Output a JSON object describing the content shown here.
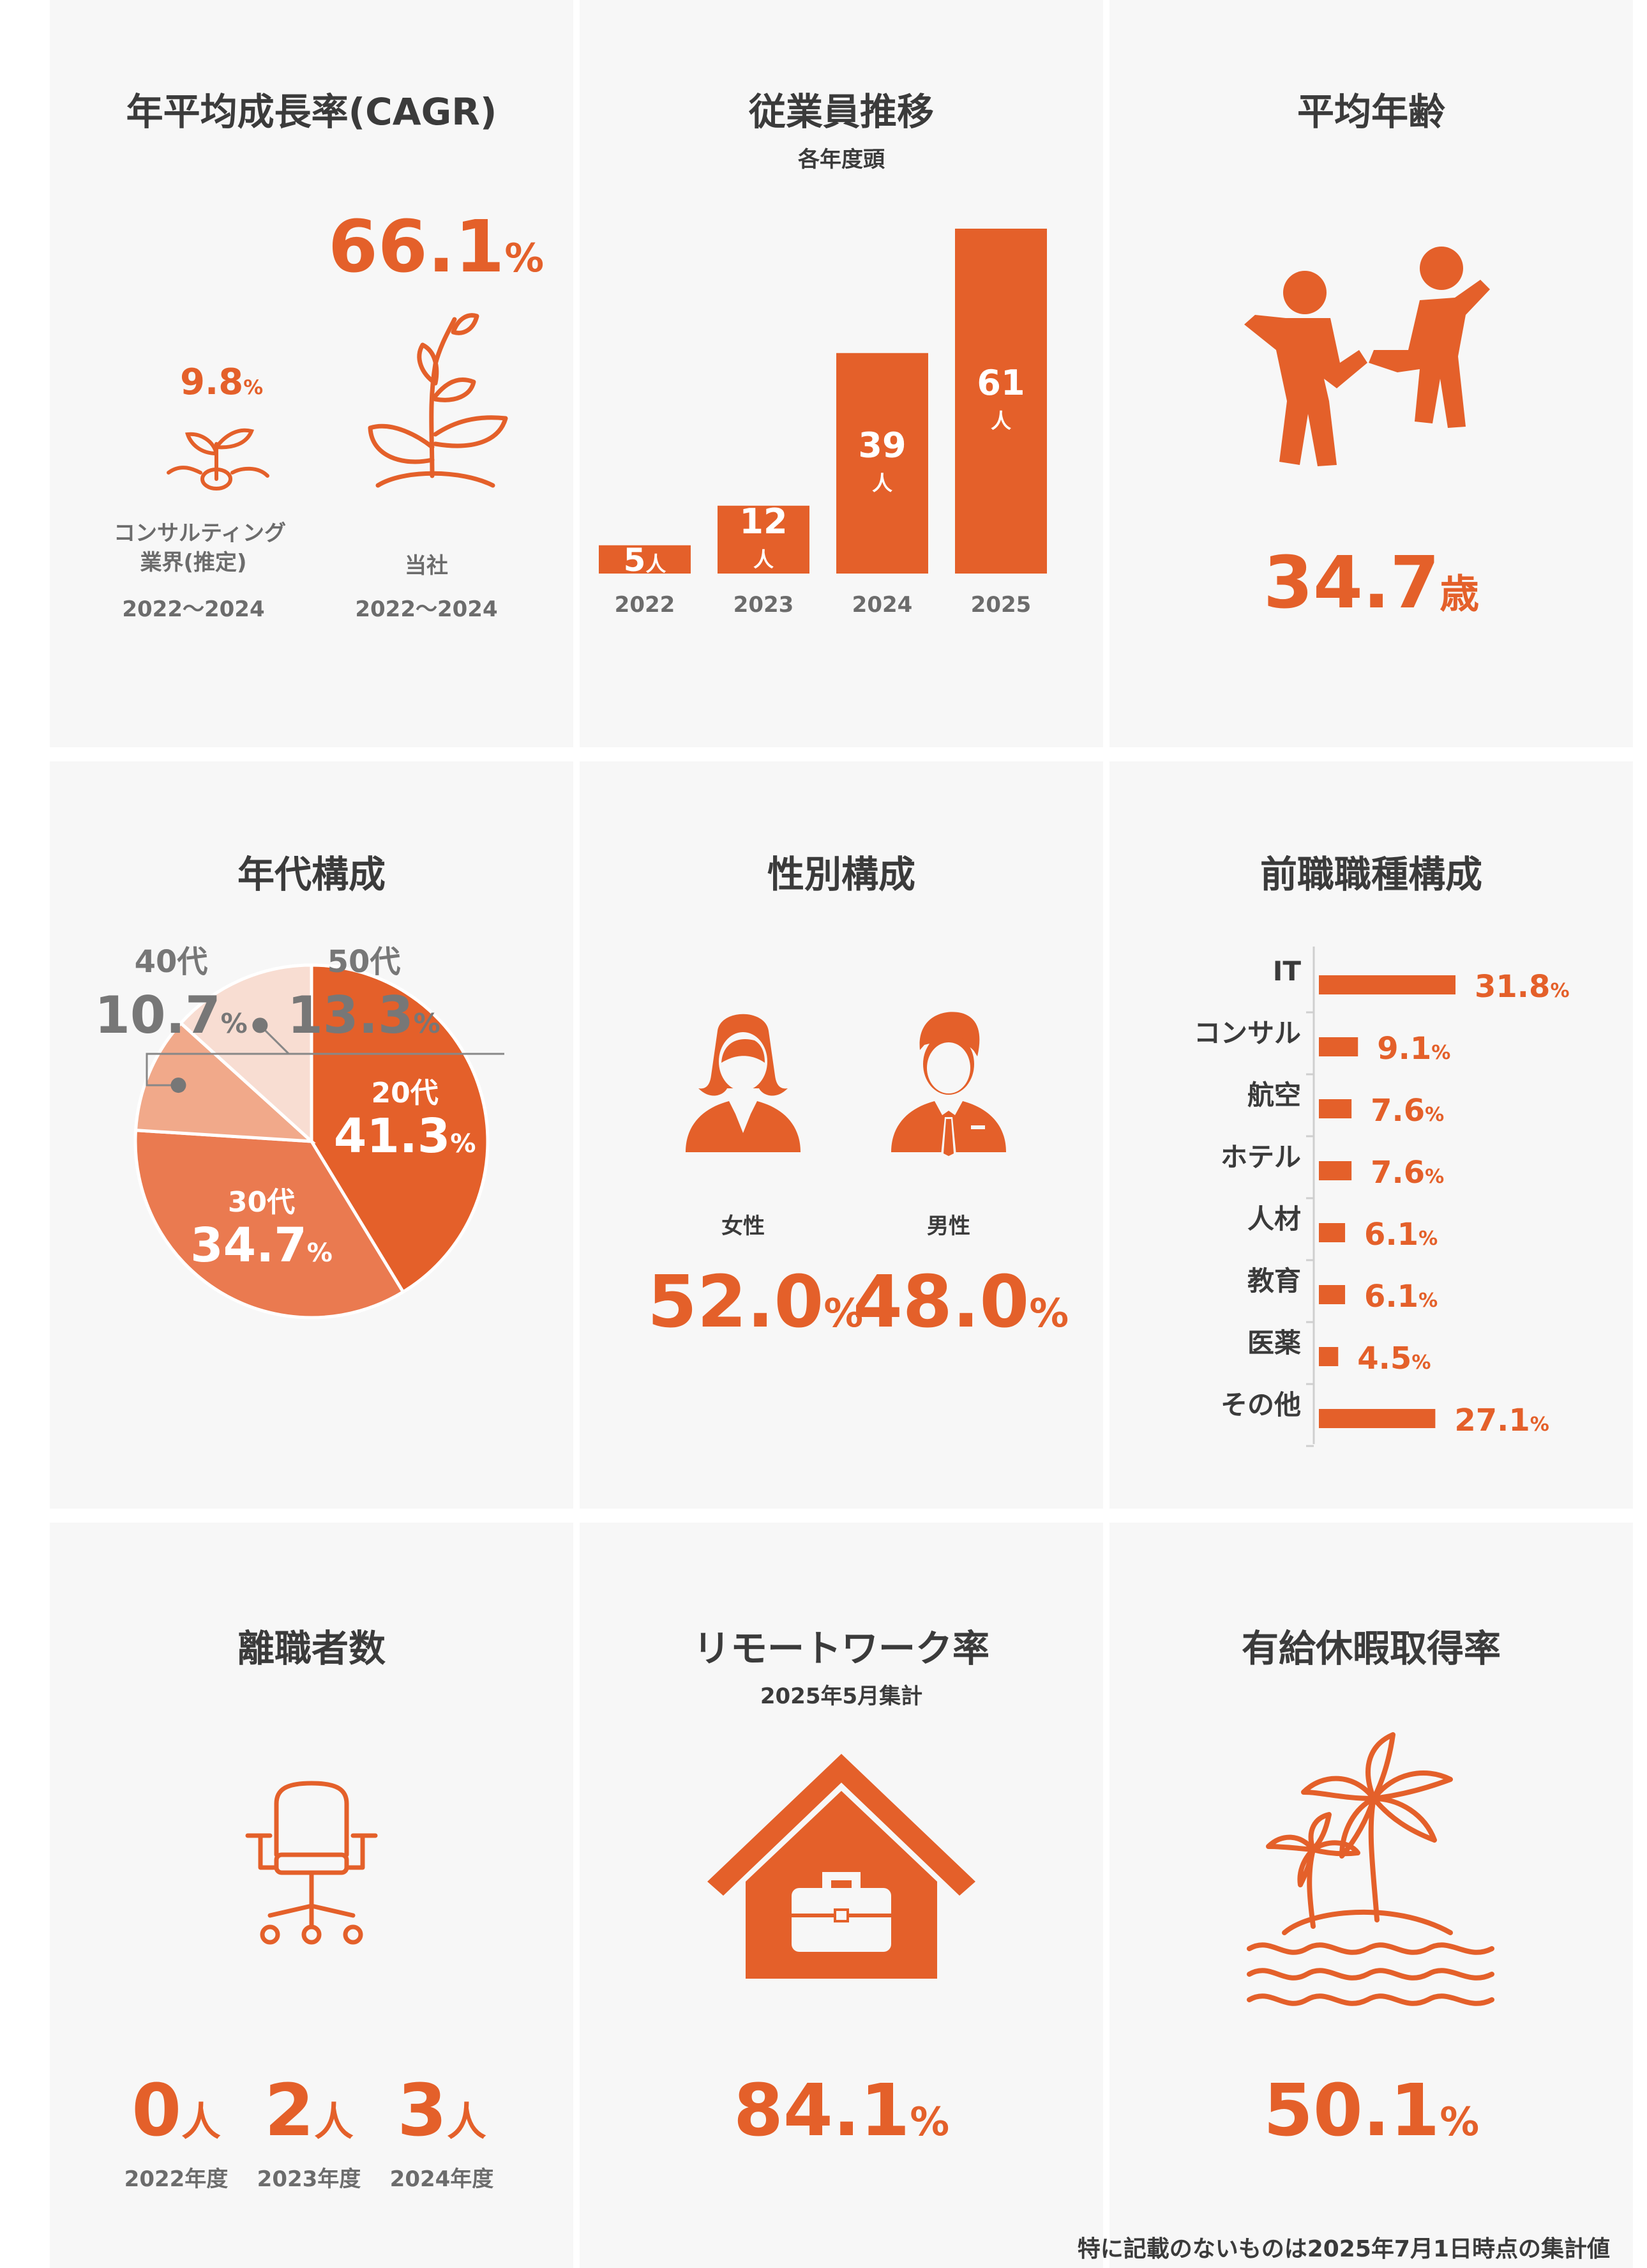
{
  "colors": {
    "accent": "#e4602a",
    "panel": "#f7f7f7",
    "text": "#3b3b3b",
    "pie30": "#ea7a50",
    "pie40": "#f1a98a",
    "pie50": "#f8ddd2"
  },
  "cagr": {
    "title": "年平均成長率(CAGR)",
    "industry": {
      "value": "9.8",
      "unit": "%",
      "label_line1": "コンサルティング",
      "label_line2": "業界(推定)",
      "period": "2022〜2024"
    },
    "company": {
      "value": "66.1",
      "unit": "%",
      "label": "当社",
      "period": "2022〜2024"
    },
    "icons": [
      "sprout-icon",
      "plant-icon"
    ]
  },
  "employees": {
    "title": "従業員推移",
    "subtitle": "各年度頭",
    "chart_data": {
      "type": "bar",
      "categories": [
        "2022",
        "2023",
        "2024",
        "2025"
      ],
      "values": [
        5,
        12,
        39,
        61
      ],
      "unit": "人",
      "ylim": [
        0,
        61
      ]
    }
  },
  "avg_age": {
    "title": "平均年齢",
    "value": "34.7",
    "unit": "歳",
    "icon": "people-dancing-icon"
  },
  "age_comp": {
    "title": "年代構成",
    "chart_data": {
      "type": "pie",
      "categories": [
        "20代",
        "30代",
        "40代",
        "50代"
      ],
      "values": [
        41.3,
        34.7,
        10.7,
        13.3
      ],
      "unit": "%"
    }
  },
  "gender": {
    "title": "性別構成",
    "female": {
      "label": "女性",
      "value": "52.0",
      "unit": "%",
      "icon": "woman-icon"
    },
    "male": {
      "label": "男性",
      "value": "48.0",
      "unit": "%",
      "icon": "man-icon"
    }
  },
  "prev_job": {
    "title": "前職職種構成",
    "chart_data": {
      "type": "bar",
      "orientation": "horizontal",
      "categories": [
        "IT",
        "コンサル",
        "航空",
        "ホテル",
        "人材",
        "教育",
        "医薬",
        "その他"
      ],
      "values": [
        31.8,
        9.1,
        7.6,
        7.6,
        6.1,
        6.1,
        4.5,
        27.1
      ],
      "unit": "%"
    }
  },
  "turnover": {
    "title": "離職者数",
    "icon": "office-chair-icon",
    "items": [
      {
        "value": "0",
        "unit": "人",
        "year": "2022年度"
      },
      {
        "value": "2",
        "unit": "人",
        "year": "2023年度"
      },
      {
        "value": "3",
        "unit": "人",
        "year": "2024年度"
      }
    ]
  },
  "remote": {
    "title": "リモートワーク率",
    "subtitle": "2025年5月集計",
    "value": "84.1",
    "unit": "%",
    "icon": "house-briefcase-icon"
  },
  "leave": {
    "title": "有給休暇取得率",
    "value": "50.1",
    "unit": "%",
    "icon": "island-palm-icon"
  },
  "footnote": "特に記載のないものは2025年7月1日時点の集計値"
}
